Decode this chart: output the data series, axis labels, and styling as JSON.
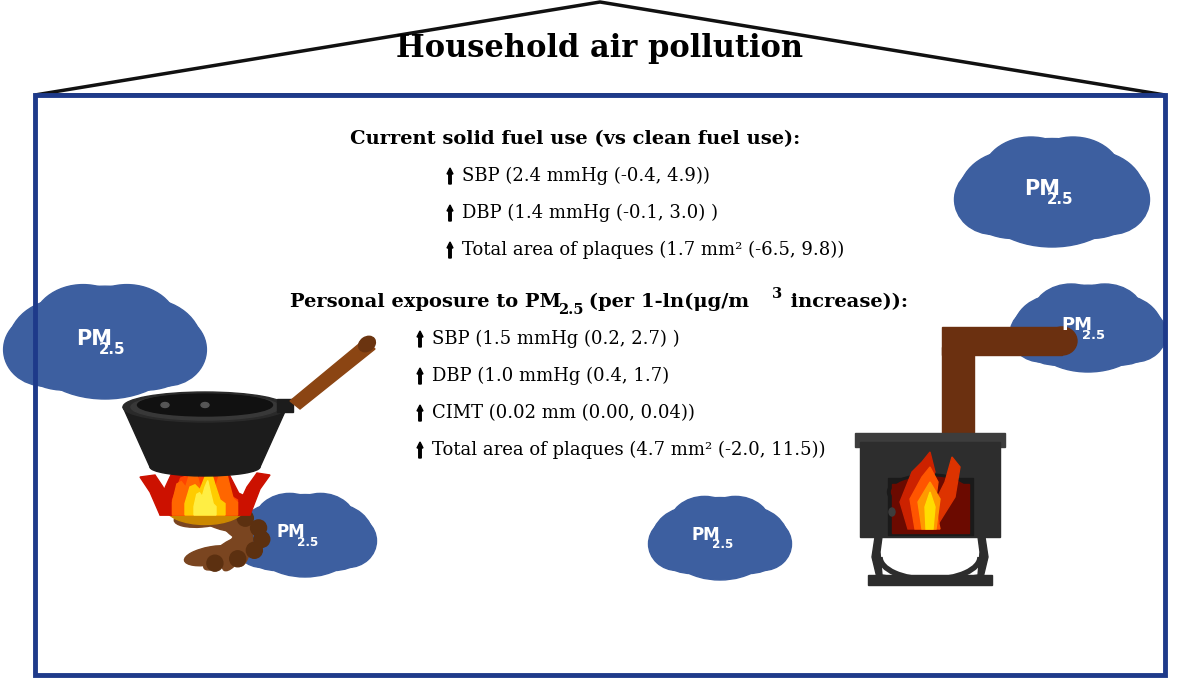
{
  "title": "Household air pollution",
  "section1_header": "Current solid fuel use (vs clean fuel use):",
  "section1_lines": [
    "SBP (2.4 mmHg (-0.4, 4.9))",
    "DBP (1.4 mmHg (-0.1, 3.0) )",
    "Total area of plaques (1.7 mm² (-6.5, 9.8))"
  ],
  "section2_header_bold": "Personal exposure to PM",
  "section2_sub": "2.5",
  "section2_mid": " (per 1-ln(μg/m",
  "section2_sup": "3",
  "section2_end": " increase)):",
  "section2_lines": [
    "SBP (1.5 mmHg (0.2, 2.7) )",
    "DBP (1.0 mmHg (0.4, 1.7)",
    "CIMT (0.02 mm (0.00, 0.04))",
    "Total area of plaques (4.7 mm² (-2.0, 11.5))"
  ],
  "background_color": "#ffffff",
  "border_color": "#1e3a8a",
  "cloud_color": "#3d5fa0",
  "text_color": "#000000"
}
